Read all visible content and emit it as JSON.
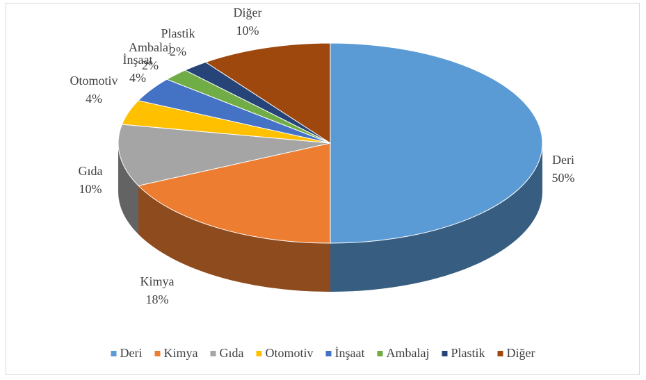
{
  "chart_data": {
    "type": "pie3d",
    "categories": [
      "Deri",
      "Kimya",
      "Gıda",
      "Otomotiv",
      "İnşaat",
      "Ambalaj",
      "Plastik",
      "Diğer"
    ],
    "values": [
      50,
      18,
      10,
      4,
      4,
      2,
      2,
      10
    ],
    "value_labels": [
      "50%",
      "18%",
      "10%",
      "4%",
      "4%",
      "2%",
      "2%",
      "10%"
    ],
    "colors": [
      "#5b9bd5",
      "#ed7d31",
      "#a5a5a5",
      "#ffc000",
      "#4472c4",
      "#70ad47",
      "#264478",
      "#9e480e"
    ],
    "legend": "bottom"
  }
}
